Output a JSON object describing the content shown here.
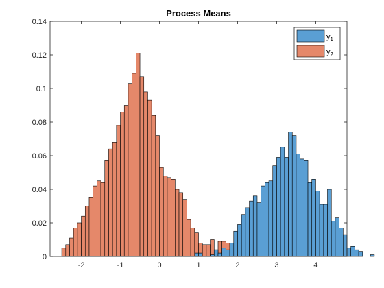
{
  "chart_data": {
    "type": "bar",
    "title": "Process Means",
    "xlabel": "",
    "ylabel": "",
    "xlim": [
      -2.8,
      4.8
    ],
    "ylim": [
      0,
      0.14
    ],
    "xticks": [
      -2,
      -1,
      0,
      1,
      2,
      3,
      4
    ],
    "yticks": [
      0,
      0.02,
      0.04,
      0.06,
      0.08,
      0.1,
      0.12,
      0.14
    ],
    "xtick_labels": [
      "-2",
      "-1",
      "0",
      "1",
      "2",
      "3",
      "4"
    ],
    "ytick_labels": [
      "0",
      "0.02",
      "0.04",
      "0.06",
      "0.08",
      "0.1",
      "0.12",
      "0.14"
    ],
    "grid": false,
    "legend_position": "top-right",
    "bin_width": 0.1,
    "series": [
      {
        "name": "y1",
        "legend_base": "y",
        "legend_sub": "1",
        "color": "#5a9fd4",
        "bin_edges_start": 0.9,
        "values": [
          0.002,
          0.002,
          0,
          0,
          0.001,
          0.004,
          0.002,
          0.005,
          0.004,
          0.008,
          0.015,
          0.019,
          0.025,
          0.029,
          0.033,
          0.036,
          0.032,
          0.042,
          0.044,
          0.045,
          0.054,
          0.059,
          0.065,
          0.059,
          0.074,
          0.072,
          0.061,
          0.058,
          0.057,
          0.044,
          0.046,
          0.039,
          0.031,
          0.031,
          0.04,
          0.021,
          0.023,
          0.017,
          0.013,
          0.005,
          0.006,
          0.004,
          0.003,
          0,
          0,
          0.001
        ]
      },
      {
        "name": "y2",
        "legend_base": "y",
        "legend_sub": "2",
        "color": "#e5886a",
        "bin_edges_start": -2.5,
        "values": [
          0.005,
          0.007,
          0.011,
          0.017,
          0.02,
          0.024,
          0.03,
          0.035,
          0.042,
          0.045,
          0.044,
          0.057,
          0.064,
          0.068,
          0.078,
          0.086,
          0.09,
          0.103,
          0.109,
          0.121,
          0.107,
          0.098,
          0.093,
          0.084,
          0.072,
          0.053,
          0.048,
          0.047,
          0.046,
          0.04,
          0.038,
          0.034,
          0.022,
          0.017,
          0.014,
          0.008,
          0.007,
          0.007,
          0.01,
          0.004,
          0.009,
          0.009,
          0.008,
          0.003,
          0.001,
          0.001,
          0.001,
          0.003,
          0.001,
          0.001
        ]
      }
    ]
  }
}
